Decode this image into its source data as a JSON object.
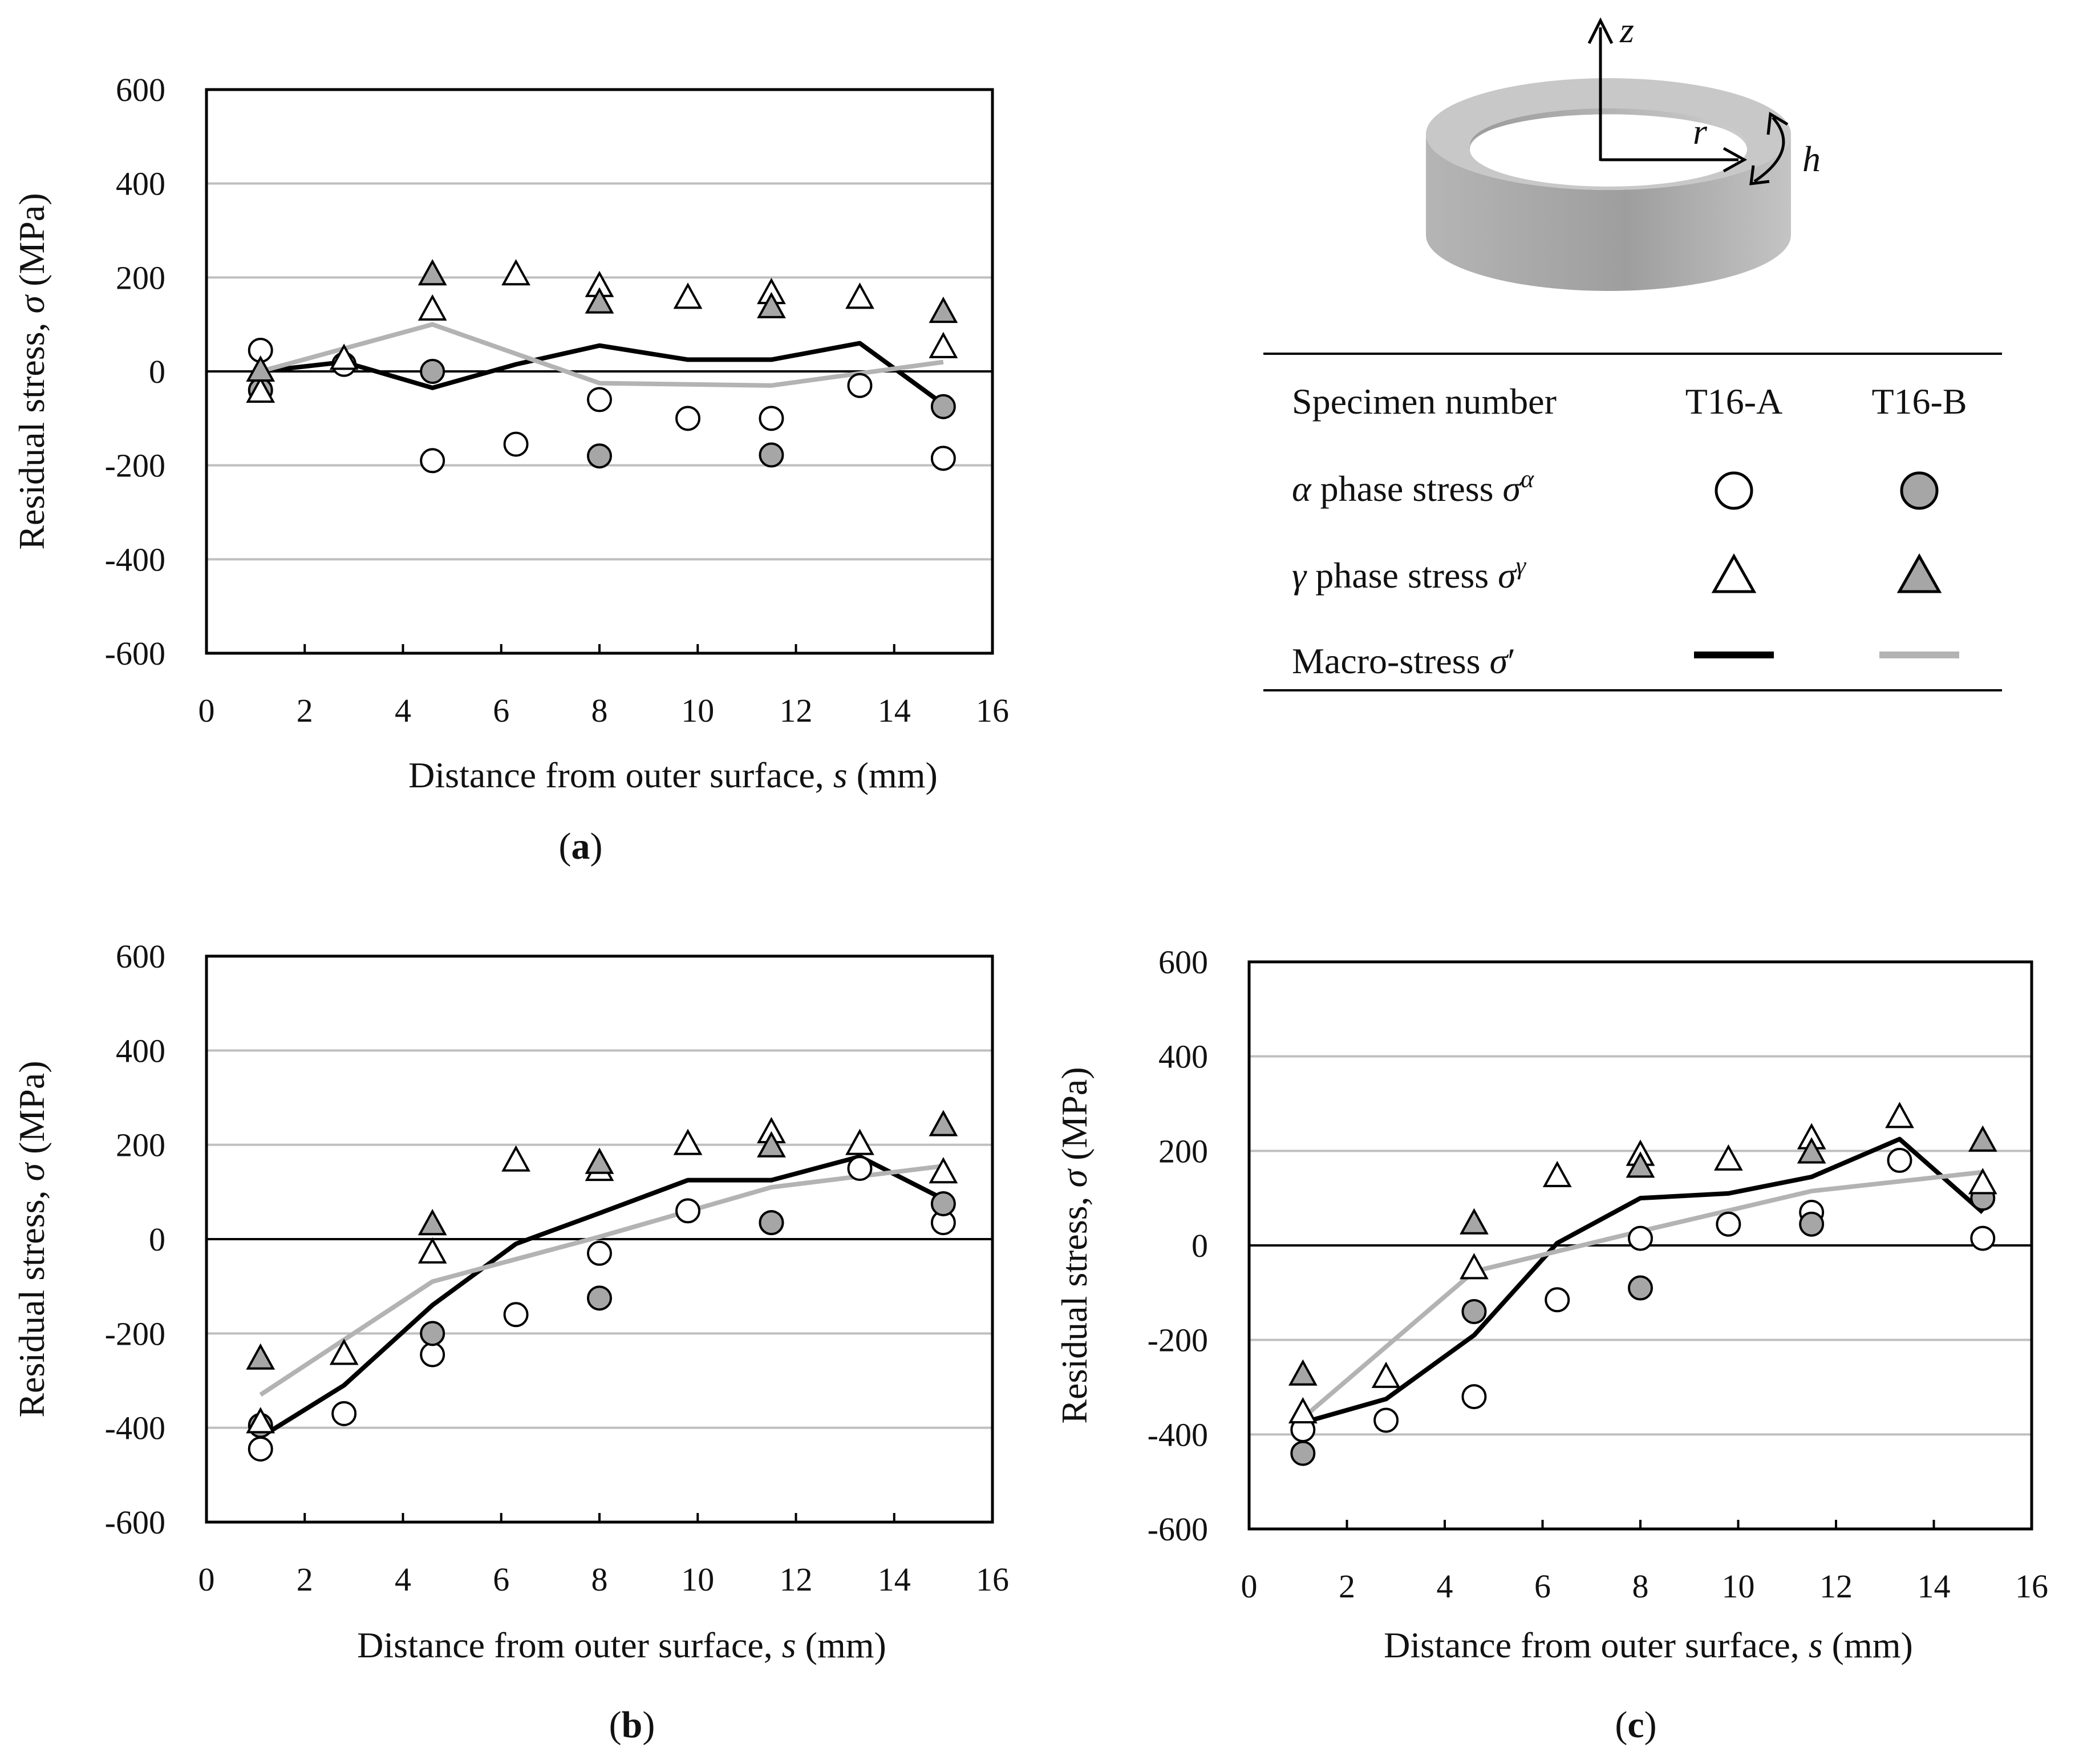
{
  "figure": {
    "legend": {
      "header_label": "Specimen number",
      "specimen_a": "T16-A",
      "specimen_b": "T16-B",
      "rows": [
        {
          "sym": "α",
          "text": " phase stress ",
          "sig": "σ",
          "sup": "α",
          "marker": "circle"
        },
        {
          "sym": "γ",
          "text": " phase stress ",
          "sig": "σ",
          "sup": "γ",
          "marker": "triangle"
        },
        {
          "sym": "",
          "text": "Macro-stress ",
          "sig": "σ",
          "sup": "′",
          "marker": "line"
        }
      ]
    },
    "specimen_diagram": {
      "axis_z": "z",
      "axis_r": "r",
      "axis_h": "h"
    },
    "colors": {
      "specimen_a_fill": "#ffffff",
      "specimen_b_fill": "#a6a6a6",
      "macro_a": "#000000",
      "macro_b": "#b3b3b3",
      "gridline": "#bfbfbf"
    }
  },
  "chart_data": [
    {
      "type": "scatter",
      "panel": "a",
      "caption": "(a)",
      "xlabel": {
        "pre": "Distance from outer surface, ",
        "var": "s",
        "post": " (mm)"
      },
      "ylabel": {
        "pre": "Residual stress, ",
        "var": "σ",
        "post": " (MPa)"
      },
      "xlim": [
        0,
        16
      ],
      "ylim": [
        -600,
        600
      ],
      "xticks": [
        0,
        2,
        4,
        6,
        8,
        10,
        12,
        14,
        16
      ],
      "yticks": [
        -600,
        -400,
        -200,
        0,
        200,
        400,
        600
      ],
      "grid": true,
      "series": [
        {
          "specimen": "T16-A",
          "phase": "alpha",
          "x": [
            1.1,
            2.8,
            4.6,
            6.3,
            8.0,
            9.8,
            11.5,
            13.3,
            15.0
          ],
          "y": [
            45,
            15,
            -190,
            -155,
            -60,
            -100,
            -100,
            -30,
            -185
          ]
        },
        {
          "specimen": "T16-B",
          "phase": "alpha",
          "x": [
            1.1,
            4.6,
            8.0,
            11.5,
            15.0
          ],
          "y": [
            -40,
            0,
            -180,
            -178,
            -75
          ]
        },
        {
          "specimen": "T16-A",
          "phase": "gamma",
          "x": [
            1.1,
            2.8,
            4.6,
            6.3,
            8.0,
            9.8,
            11.5,
            13.3,
            15.0
          ],
          "y": [
            -45,
            25,
            130,
            205,
            180,
            155,
            165,
            155,
            50
          ]
        },
        {
          "specimen": "T16-B",
          "phase": "gamma",
          "x": [
            1.1,
            4.6,
            8.0,
            11.5,
            15.0
          ],
          "y": [
            0,
            205,
            145,
            135,
            125
          ]
        },
        {
          "specimen": "T16-A",
          "phase": "macro",
          "x": [
            1.1,
            2.8,
            4.6,
            6.3,
            8.0,
            9.8,
            11.5,
            13.3,
            15.0
          ],
          "y": [
            0,
            20,
            -35,
            15,
            55,
            25,
            25,
            60,
            -70
          ]
        },
        {
          "specimen": "T16-B",
          "phase": "macro",
          "x": [
            1.1,
            4.6,
            8.0,
            11.5,
            15.0
          ],
          "y": [
            0,
            100,
            -25,
            -30,
            20
          ]
        }
      ]
    },
    {
      "type": "scatter",
      "panel": "b",
      "caption": "(b)",
      "xlabel": {
        "pre": "Distance from outer surface, ",
        "var": "s",
        "post": " (mm)"
      },
      "ylabel": {
        "pre": "Residual stress, ",
        "var": "σ",
        "post": " (MPa)"
      },
      "xlim": [
        0,
        16
      ],
      "ylim": [
        -600,
        600
      ],
      "xticks": [
        0,
        2,
        4,
        6,
        8,
        10,
        12,
        14,
        16
      ],
      "yticks": [
        -600,
        -400,
        -200,
        0,
        200,
        400,
        600
      ],
      "grid": true,
      "series": [
        {
          "specimen": "T16-A",
          "phase": "alpha",
          "x": [
            1.1,
            2.8,
            4.6,
            6.3,
            8.0,
            9.8,
            11.5,
            13.3,
            15.0
          ],
          "y": [
            -445,
            -370,
            -245,
            -160,
            -30,
            60,
            35,
            150,
            35
          ]
        },
        {
          "specimen": "T16-B",
          "phase": "alpha",
          "x": [
            1.1,
            4.6,
            8.0,
            11.5,
            15.0
          ],
          "y": [
            -395,
            -200,
            -125,
            35,
            75
          ]
        },
        {
          "specimen": "T16-A",
          "phase": "gamma",
          "x": [
            1.1,
            2.8,
            4.6,
            6.3,
            8.0,
            9.8,
            11.5,
            13.3,
            15.0
          ],
          "y": [
            -390,
            -245,
            -30,
            165,
            145,
            200,
            225,
            200,
            140
          ]
        },
        {
          "specimen": "T16-B",
          "phase": "gamma",
          "x": [
            1.1,
            4.6,
            8.0,
            11.5,
            15.0
          ],
          "y": [
            -255,
            30,
            160,
            195,
            240
          ]
        },
        {
          "specimen": "T16-A",
          "phase": "macro",
          "x": [
            1.1,
            2.8,
            4.6,
            6.3,
            8.0,
            9.8,
            11.5,
            13.3,
            15.0
          ],
          "y": [
            -420,
            -310,
            -140,
            -10,
            55,
            125,
            125,
            175,
            85
          ]
        },
        {
          "specimen": "T16-B",
          "phase": "macro",
          "x": [
            1.1,
            4.6,
            8.0,
            11.5,
            15.0
          ],
          "y": [
            -330,
            -90,
            5,
            110,
            155
          ]
        }
      ]
    },
    {
      "type": "scatter",
      "panel": "c",
      "caption": "(c)",
      "xlabel": {
        "pre": "Distance from outer surface, ",
        "var": "s",
        "post": " (mm)"
      },
      "ylabel": {
        "pre": "Residual stress, ",
        "var": "σ",
        "post": " (MPa)"
      },
      "xlim": [
        0,
        16
      ],
      "ylim": [
        -600,
        600
      ],
      "xticks": [
        0,
        2,
        4,
        6,
        8,
        10,
        12,
        14,
        16
      ],
      "yticks": [
        -600,
        -400,
        -200,
        0,
        200,
        400,
        600
      ],
      "grid": true,
      "series": [
        {
          "specimen": "T16-A",
          "phase": "alpha",
          "x": [
            1.1,
            2.8,
            4.6,
            6.3,
            8.0,
            9.8,
            11.5,
            13.3,
            15.0
          ],
          "y": [
            -390,
            -370,
            -320,
            -115,
            15,
            45,
            70,
            180,
            15
          ]
        },
        {
          "specimen": "T16-B",
          "phase": "alpha",
          "x": [
            1.1,
            4.6,
            8.0,
            11.5,
            15.0
          ],
          "y": [
            -440,
            -140,
            -90,
            45,
            100
          ]
        },
        {
          "specimen": "T16-A",
          "phase": "gamma",
          "x": [
            1.1,
            2.8,
            4.6,
            6.3,
            8.0,
            9.8,
            11.5,
            13.3,
            15.0
          ],
          "y": [
            -355,
            -280,
            -50,
            145,
            190,
            180,
            225,
            270,
            130
          ]
        },
        {
          "specimen": "T16-B",
          "phase": "gamma",
          "x": [
            1.1,
            4.6,
            8.0,
            11.5,
            15.0
          ],
          "y": [
            -275,
            45,
            165,
            195,
            220
          ]
        },
        {
          "specimen": "T16-A",
          "phase": "macro",
          "x": [
            1.1,
            2.8,
            4.6,
            6.3,
            8.0,
            9.8,
            11.5,
            13.3,
            15.0
          ],
          "y": [
            -375,
            -325,
            -190,
            5,
            100,
            110,
            145,
            225,
            70
          ]
        },
        {
          "specimen": "T16-B",
          "phase": "macro",
          "x": [
            1.1,
            4.6,
            8.0,
            11.5,
            15.0
          ],
          "y": [
            -365,
            -55,
            30,
            115,
            155
          ]
        }
      ]
    }
  ]
}
